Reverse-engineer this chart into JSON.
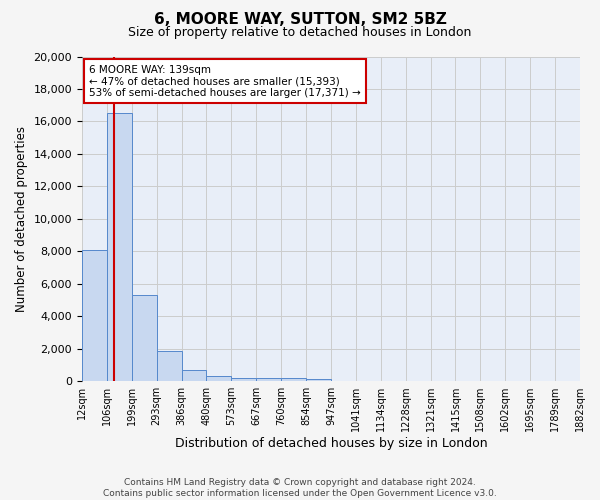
{
  "title1": "6, MOORE WAY, SUTTON, SM2 5BZ",
  "title2": "Size of property relative to detached houses in London",
  "xlabel": "Distribution of detached houses by size in London",
  "ylabel": "Number of detached properties",
  "bin_labels": [
    "12sqm",
    "106sqm",
    "199sqm",
    "293sqm",
    "386sqm",
    "480sqm",
    "573sqm",
    "667sqm",
    "760sqm",
    "854sqm",
    "947sqm",
    "1041sqm",
    "1134sqm",
    "1228sqm",
    "1321sqm",
    "1415sqm",
    "1508sqm",
    "1602sqm",
    "1695sqm",
    "1789sqm",
    "1882sqm"
  ],
  "bar_heights": [
    8100,
    16500,
    5300,
    1850,
    700,
    300,
    220,
    190,
    170,
    150,
    0,
    0,
    0,
    0,
    0,
    0,
    0,
    0,
    0,
    0
  ],
  "bar_color": "#c8d8f0",
  "bar_edge_color": "#5588cc",
  "property_line_x": 1.3,
  "property_line_color": "#cc0000",
  "annotation_title": "6 MOORE WAY: 139sqm",
  "annotation_line1": "← 47% of detached houses are smaller (15,393)",
  "annotation_line2": "53% of semi-detached houses are larger (17,371) →",
  "annotation_box_color": "#ffffff",
  "annotation_box_edge": "#cc0000",
  "ylim": [
    0,
    20000
  ],
  "yticks": [
    0,
    2000,
    4000,
    6000,
    8000,
    10000,
    12000,
    14000,
    16000,
    18000,
    20000
  ],
  "grid_color": "#cccccc",
  "bg_color": "#e8eef8",
  "fig_color": "#f5f5f5",
  "footer1": "Contains HM Land Registry data © Crown copyright and database right 2024.",
  "footer2": "Contains public sector information licensed under the Open Government Licence v3.0."
}
